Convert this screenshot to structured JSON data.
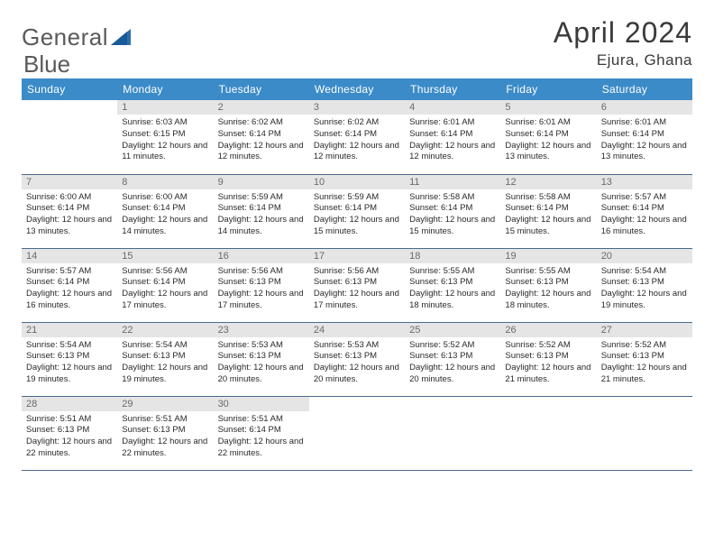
{
  "brand": {
    "text1": "General",
    "text2": "Blue"
  },
  "colors": {
    "header_bg": "#3b8bc8",
    "header_text": "#ffffff",
    "daynum_bg": "#e5e5e5",
    "daynum_text": "#6a6a6a",
    "body_text": "#2a2a2a",
    "row_border": "#4a6a8a",
    "title_text": "#3a3a3a",
    "logo_text": "#5a5a5a",
    "logo_accent": "#2f6ea8"
  },
  "title": "April 2024",
  "location": "Ejura, Ghana",
  "weekdays": [
    "Sunday",
    "Monday",
    "Tuesday",
    "Wednesday",
    "Thursday",
    "Friday",
    "Saturday"
  ],
  "start_offset": 1,
  "days": [
    {
      "n": 1,
      "sunrise": "6:03 AM",
      "sunset": "6:15 PM",
      "daylight": "12 hours and 11 minutes."
    },
    {
      "n": 2,
      "sunrise": "6:02 AM",
      "sunset": "6:14 PM",
      "daylight": "12 hours and 12 minutes."
    },
    {
      "n": 3,
      "sunrise": "6:02 AM",
      "sunset": "6:14 PM",
      "daylight": "12 hours and 12 minutes."
    },
    {
      "n": 4,
      "sunrise": "6:01 AM",
      "sunset": "6:14 PM",
      "daylight": "12 hours and 12 minutes."
    },
    {
      "n": 5,
      "sunrise": "6:01 AM",
      "sunset": "6:14 PM",
      "daylight": "12 hours and 13 minutes."
    },
    {
      "n": 6,
      "sunrise": "6:01 AM",
      "sunset": "6:14 PM",
      "daylight": "12 hours and 13 minutes."
    },
    {
      "n": 7,
      "sunrise": "6:00 AM",
      "sunset": "6:14 PM",
      "daylight": "12 hours and 13 minutes."
    },
    {
      "n": 8,
      "sunrise": "6:00 AM",
      "sunset": "6:14 PM",
      "daylight": "12 hours and 14 minutes."
    },
    {
      "n": 9,
      "sunrise": "5:59 AM",
      "sunset": "6:14 PM",
      "daylight": "12 hours and 14 minutes."
    },
    {
      "n": 10,
      "sunrise": "5:59 AM",
      "sunset": "6:14 PM",
      "daylight": "12 hours and 15 minutes."
    },
    {
      "n": 11,
      "sunrise": "5:58 AM",
      "sunset": "6:14 PM",
      "daylight": "12 hours and 15 minutes."
    },
    {
      "n": 12,
      "sunrise": "5:58 AM",
      "sunset": "6:14 PM",
      "daylight": "12 hours and 15 minutes."
    },
    {
      "n": 13,
      "sunrise": "5:57 AM",
      "sunset": "6:14 PM",
      "daylight": "12 hours and 16 minutes."
    },
    {
      "n": 14,
      "sunrise": "5:57 AM",
      "sunset": "6:14 PM",
      "daylight": "12 hours and 16 minutes."
    },
    {
      "n": 15,
      "sunrise": "5:56 AM",
      "sunset": "6:14 PM",
      "daylight": "12 hours and 17 minutes."
    },
    {
      "n": 16,
      "sunrise": "5:56 AM",
      "sunset": "6:13 PM",
      "daylight": "12 hours and 17 minutes."
    },
    {
      "n": 17,
      "sunrise": "5:56 AM",
      "sunset": "6:13 PM",
      "daylight": "12 hours and 17 minutes."
    },
    {
      "n": 18,
      "sunrise": "5:55 AM",
      "sunset": "6:13 PM",
      "daylight": "12 hours and 18 minutes."
    },
    {
      "n": 19,
      "sunrise": "5:55 AM",
      "sunset": "6:13 PM",
      "daylight": "12 hours and 18 minutes."
    },
    {
      "n": 20,
      "sunrise": "5:54 AM",
      "sunset": "6:13 PM",
      "daylight": "12 hours and 19 minutes."
    },
    {
      "n": 21,
      "sunrise": "5:54 AM",
      "sunset": "6:13 PM",
      "daylight": "12 hours and 19 minutes."
    },
    {
      "n": 22,
      "sunrise": "5:54 AM",
      "sunset": "6:13 PM",
      "daylight": "12 hours and 19 minutes."
    },
    {
      "n": 23,
      "sunrise": "5:53 AM",
      "sunset": "6:13 PM",
      "daylight": "12 hours and 20 minutes."
    },
    {
      "n": 24,
      "sunrise": "5:53 AM",
      "sunset": "6:13 PM",
      "daylight": "12 hours and 20 minutes."
    },
    {
      "n": 25,
      "sunrise": "5:52 AM",
      "sunset": "6:13 PM",
      "daylight": "12 hours and 20 minutes."
    },
    {
      "n": 26,
      "sunrise": "5:52 AM",
      "sunset": "6:13 PM",
      "daylight": "12 hours and 21 minutes."
    },
    {
      "n": 27,
      "sunrise": "5:52 AM",
      "sunset": "6:13 PM",
      "daylight": "12 hours and 21 minutes."
    },
    {
      "n": 28,
      "sunrise": "5:51 AM",
      "sunset": "6:13 PM",
      "daylight": "12 hours and 22 minutes."
    },
    {
      "n": 29,
      "sunrise": "5:51 AM",
      "sunset": "6:13 PM",
      "daylight": "12 hours and 22 minutes."
    },
    {
      "n": 30,
      "sunrise": "5:51 AM",
      "sunset": "6:14 PM",
      "daylight": "12 hours and 22 minutes."
    }
  ],
  "labels": {
    "sunrise": "Sunrise:",
    "sunset": "Sunset:",
    "daylight": "Daylight:"
  }
}
